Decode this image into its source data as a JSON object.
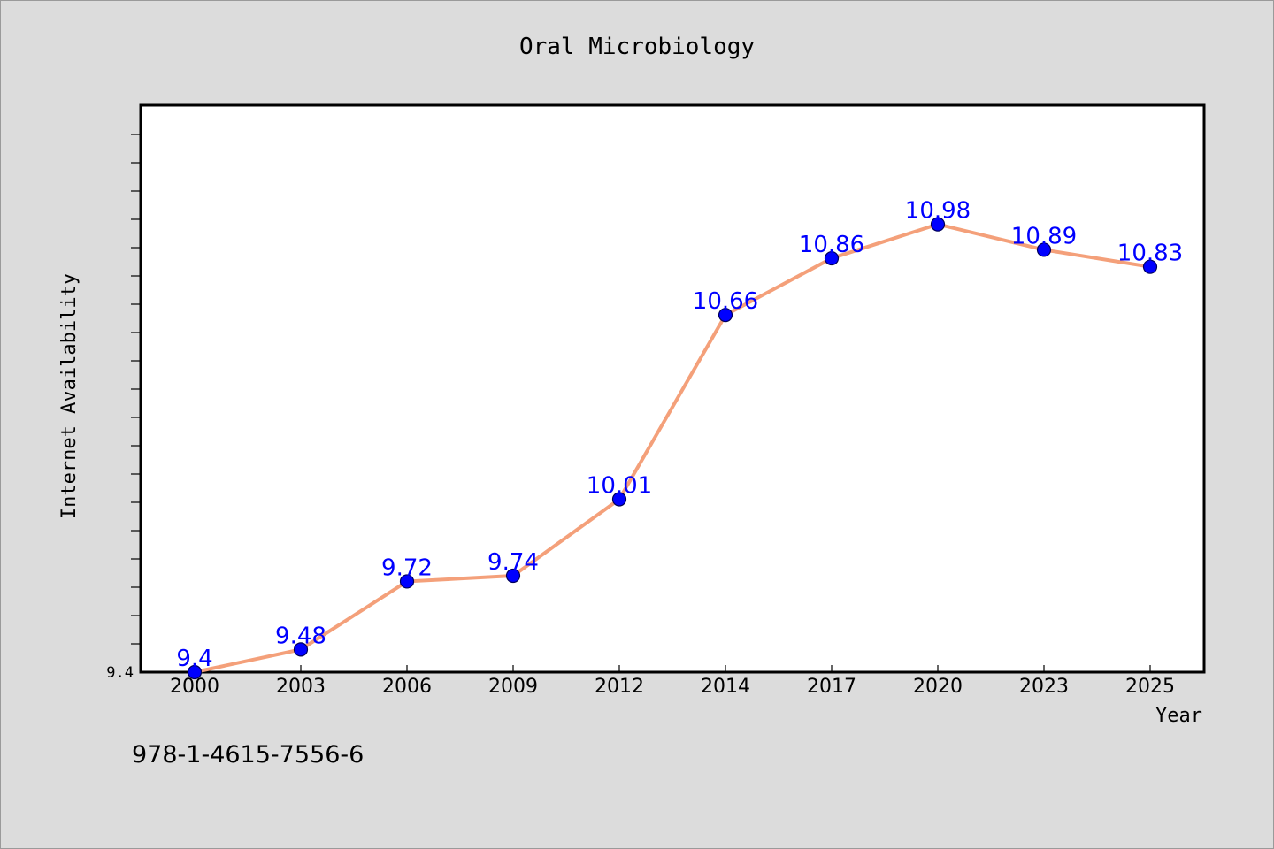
{
  "chart_data": {
    "type": "line",
    "title": "Oral Microbiology",
    "xlabel": "Year",
    "ylabel": "Internet Availability",
    "categories": [
      "2000",
      "2003",
      "2006",
      "2009",
      "2012",
      "2014",
      "2017",
      "2020",
      "2023",
      "2025"
    ],
    "series": [
      {
        "values": [
          9.4,
          9.48,
          9.72,
          9.74,
          10.01,
          10.66,
          10.86,
          10.98,
          10.89,
          10.83
        ],
        "data_labels": [
          "9.4",
          "9.48",
          "9.72",
          "9.74",
          "10.01",
          "10.66",
          "10.86",
          "10.98",
          "10.89",
          "10.83"
        ]
      }
    ],
    "ylim": [
      9.4,
      11.4
    ],
    "yticks_labeled": [
      "9.4"
    ],
    "grid": false,
    "legend": "none",
    "colors": {
      "line": "#f4a07a",
      "marker": "#0000ff",
      "data_label": "#0000ff",
      "background": "#dcdcdc",
      "plot_background": "#ffffff"
    }
  },
  "footnote": "978-1-4615-7556-6"
}
